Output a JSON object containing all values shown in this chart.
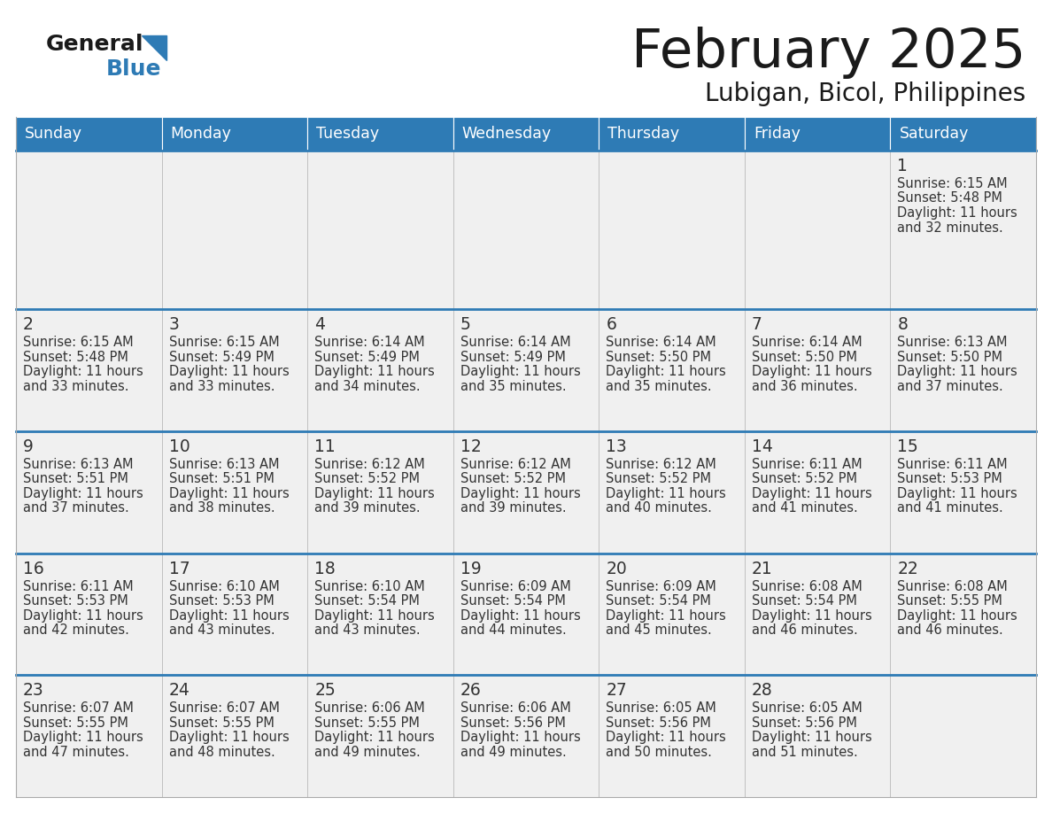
{
  "title": "February 2025",
  "subtitle": "Lubigan, Bicol, Philippines",
  "days_of_week": [
    "Sunday",
    "Monday",
    "Tuesday",
    "Wednesday",
    "Thursday",
    "Friday",
    "Saturday"
  ],
  "header_bg": "#2E7BB5",
  "header_text": "#FFFFFF",
  "cell_bg_light": "#F0F0F0",
  "cell_bg_white": "#FFFFFF",
  "border_color": "#AAAAAA",
  "row_border_color": "#3A7EC0",
  "day_num_color": "#333333",
  "info_color": "#333333",
  "title_color": "#1a1a1a",
  "logo_general_color": "#1a1a1a",
  "logo_blue_color": "#2E7BB5",
  "calendar_data": [
    [
      null,
      null,
      null,
      null,
      null,
      null,
      {
        "day": 1,
        "sunrise": "6:15 AM",
        "sunset": "5:48 PM",
        "daylight_line1": "Daylight: 11 hours",
        "daylight_line2": "and 32 minutes."
      }
    ],
    [
      {
        "day": 2,
        "sunrise": "6:15 AM",
        "sunset": "5:48 PM",
        "daylight_line1": "Daylight: 11 hours",
        "daylight_line2": "and 33 minutes."
      },
      {
        "day": 3,
        "sunrise": "6:15 AM",
        "sunset": "5:49 PM",
        "daylight_line1": "Daylight: 11 hours",
        "daylight_line2": "and 33 minutes."
      },
      {
        "day": 4,
        "sunrise": "6:14 AM",
        "sunset": "5:49 PM",
        "daylight_line1": "Daylight: 11 hours",
        "daylight_line2": "and 34 minutes."
      },
      {
        "day": 5,
        "sunrise": "6:14 AM",
        "sunset": "5:49 PM",
        "daylight_line1": "Daylight: 11 hours",
        "daylight_line2": "and 35 minutes."
      },
      {
        "day": 6,
        "sunrise": "6:14 AM",
        "sunset": "5:50 PM",
        "daylight_line1": "Daylight: 11 hours",
        "daylight_line2": "and 35 minutes."
      },
      {
        "day": 7,
        "sunrise": "6:14 AM",
        "sunset": "5:50 PM",
        "daylight_line1": "Daylight: 11 hours",
        "daylight_line2": "and 36 minutes."
      },
      {
        "day": 8,
        "sunrise": "6:13 AM",
        "sunset": "5:50 PM",
        "daylight_line1": "Daylight: 11 hours",
        "daylight_line2": "and 37 minutes."
      }
    ],
    [
      {
        "day": 9,
        "sunrise": "6:13 AM",
        "sunset": "5:51 PM",
        "daylight_line1": "Daylight: 11 hours",
        "daylight_line2": "and 37 minutes."
      },
      {
        "day": 10,
        "sunrise": "6:13 AM",
        "sunset": "5:51 PM",
        "daylight_line1": "Daylight: 11 hours",
        "daylight_line2": "and 38 minutes."
      },
      {
        "day": 11,
        "sunrise": "6:12 AM",
        "sunset": "5:52 PM",
        "daylight_line1": "Daylight: 11 hours",
        "daylight_line2": "and 39 minutes."
      },
      {
        "day": 12,
        "sunrise": "6:12 AM",
        "sunset": "5:52 PM",
        "daylight_line1": "Daylight: 11 hours",
        "daylight_line2": "and 39 minutes."
      },
      {
        "day": 13,
        "sunrise": "6:12 AM",
        "sunset": "5:52 PM",
        "daylight_line1": "Daylight: 11 hours",
        "daylight_line2": "and 40 minutes."
      },
      {
        "day": 14,
        "sunrise": "6:11 AM",
        "sunset": "5:52 PM",
        "daylight_line1": "Daylight: 11 hours",
        "daylight_line2": "and 41 minutes."
      },
      {
        "day": 15,
        "sunrise": "6:11 AM",
        "sunset": "5:53 PM",
        "daylight_line1": "Daylight: 11 hours",
        "daylight_line2": "and 41 minutes."
      }
    ],
    [
      {
        "day": 16,
        "sunrise": "6:11 AM",
        "sunset": "5:53 PM",
        "daylight_line1": "Daylight: 11 hours",
        "daylight_line2": "and 42 minutes."
      },
      {
        "day": 17,
        "sunrise": "6:10 AM",
        "sunset": "5:53 PM",
        "daylight_line1": "Daylight: 11 hours",
        "daylight_line2": "and 43 minutes."
      },
      {
        "day": 18,
        "sunrise": "6:10 AM",
        "sunset": "5:54 PM",
        "daylight_line1": "Daylight: 11 hours",
        "daylight_line2": "and 43 minutes."
      },
      {
        "day": 19,
        "sunrise": "6:09 AM",
        "sunset": "5:54 PM",
        "daylight_line1": "Daylight: 11 hours",
        "daylight_line2": "and 44 minutes."
      },
      {
        "day": 20,
        "sunrise": "6:09 AM",
        "sunset": "5:54 PM",
        "daylight_line1": "Daylight: 11 hours",
        "daylight_line2": "and 45 minutes."
      },
      {
        "day": 21,
        "sunrise": "6:08 AM",
        "sunset": "5:54 PM",
        "daylight_line1": "Daylight: 11 hours",
        "daylight_line2": "and 46 minutes."
      },
      {
        "day": 22,
        "sunrise": "6:08 AM",
        "sunset": "5:55 PM",
        "daylight_line1": "Daylight: 11 hours",
        "daylight_line2": "and 46 minutes."
      }
    ],
    [
      {
        "day": 23,
        "sunrise": "6:07 AM",
        "sunset": "5:55 PM",
        "daylight_line1": "Daylight: 11 hours",
        "daylight_line2": "and 47 minutes."
      },
      {
        "day": 24,
        "sunrise": "6:07 AM",
        "sunset": "5:55 PM",
        "daylight_line1": "Daylight: 11 hours",
        "daylight_line2": "and 48 minutes."
      },
      {
        "day": 25,
        "sunrise": "6:06 AM",
        "sunset": "5:55 PM",
        "daylight_line1": "Daylight: 11 hours",
        "daylight_line2": "and 49 minutes."
      },
      {
        "day": 26,
        "sunrise": "6:06 AM",
        "sunset": "5:56 PM",
        "daylight_line1": "Daylight: 11 hours",
        "daylight_line2": "and 49 minutes."
      },
      {
        "day": 27,
        "sunrise": "6:05 AM",
        "sunset": "5:56 PM",
        "daylight_line1": "Daylight: 11 hours",
        "daylight_line2": "and 50 minutes."
      },
      {
        "day": 28,
        "sunrise": "6:05 AM",
        "sunset": "5:56 PM",
        "daylight_line1": "Daylight: 11 hours",
        "daylight_line2": "and 51 minutes."
      },
      null
    ]
  ]
}
